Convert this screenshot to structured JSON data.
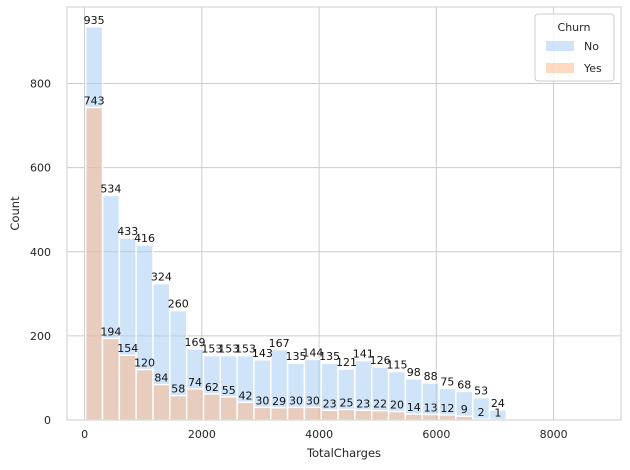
{
  "chart_data": {
    "type": "bar",
    "subtype": "overlaid-histogram",
    "xlabel": "TotalCharges",
    "ylabel": "Count",
    "xlim": [
      -300,
      9150
    ],
    "ylim": [
      0,
      982
    ],
    "xticks": [
      0,
      2000,
      4000,
      6000,
      8000
    ],
    "yticks": [
      0,
      200,
      400,
      600,
      800
    ],
    "grid": true,
    "legend": {
      "title": "Churn",
      "position": "top-right"
    },
    "bin_edges": [
      18.8,
      305.8,
      592.8,
      879.8,
      1166.8,
      1453.8,
      1740.8,
      2027.8,
      2314.8,
      2601.8,
      2888.8,
      3175.8,
      3462.8,
      3749.8,
      4036.8,
      4323.8,
      4610.8,
      4897.8,
      5184.8,
      5471.8,
      5758.8,
      6045.8,
      6332.8,
      6619.8,
      6906.8,
      7193.8,
      7480.8,
      7767.8,
      8054.8,
      8341.8,
      8628.8
    ],
    "series": [
      {
        "name": "No",
        "color": "#a1c9f4",
        "values": [
          935,
          534,
          433,
          416,
          324,
          260,
          169,
          153,
          153,
          153,
          143,
          167,
          135,
          144,
          135,
          121,
          141,
          126,
          115,
          98,
          88,
          75,
          68,
          53,
          24,
          0,
          0,
          0,
          0,
          0
        ]
      },
      {
        "name": "Yes",
        "color": "#ffb482",
        "values": [
          743,
          194,
          154,
          120,
          84,
          58,
          74,
          62,
          55,
          42,
          30,
          29,
          30,
          30,
          23,
          25,
          23,
          22,
          20,
          14,
          13,
          12,
          9,
          2,
          1,
          0,
          0,
          0,
          0,
          0
        ]
      }
    ],
    "labels": {
      "no": [
        "935",
        "534",
        "433",
        "416",
        "324",
        "260",
        "169",
        "153",
        "153",
        "153",
        "143",
        "167",
        "135",
        "144",
        "135",
        "121",
        "141",
        "126",
        "115",
        "98",
        "88",
        "75",
        "68",
        "53",
        "24"
      ],
      "yes": [
        "743",
        "194",
        "154",
        "120",
        "84",
        "58",
        "74",
        "62",
        "55",
        "42",
        "30",
        "29",
        "30",
        "30",
        "23",
        "25",
        "23",
        "22",
        "20",
        "14",
        "13",
        "12",
        "9",
        "2",
        "1"
      ]
    }
  }
}
